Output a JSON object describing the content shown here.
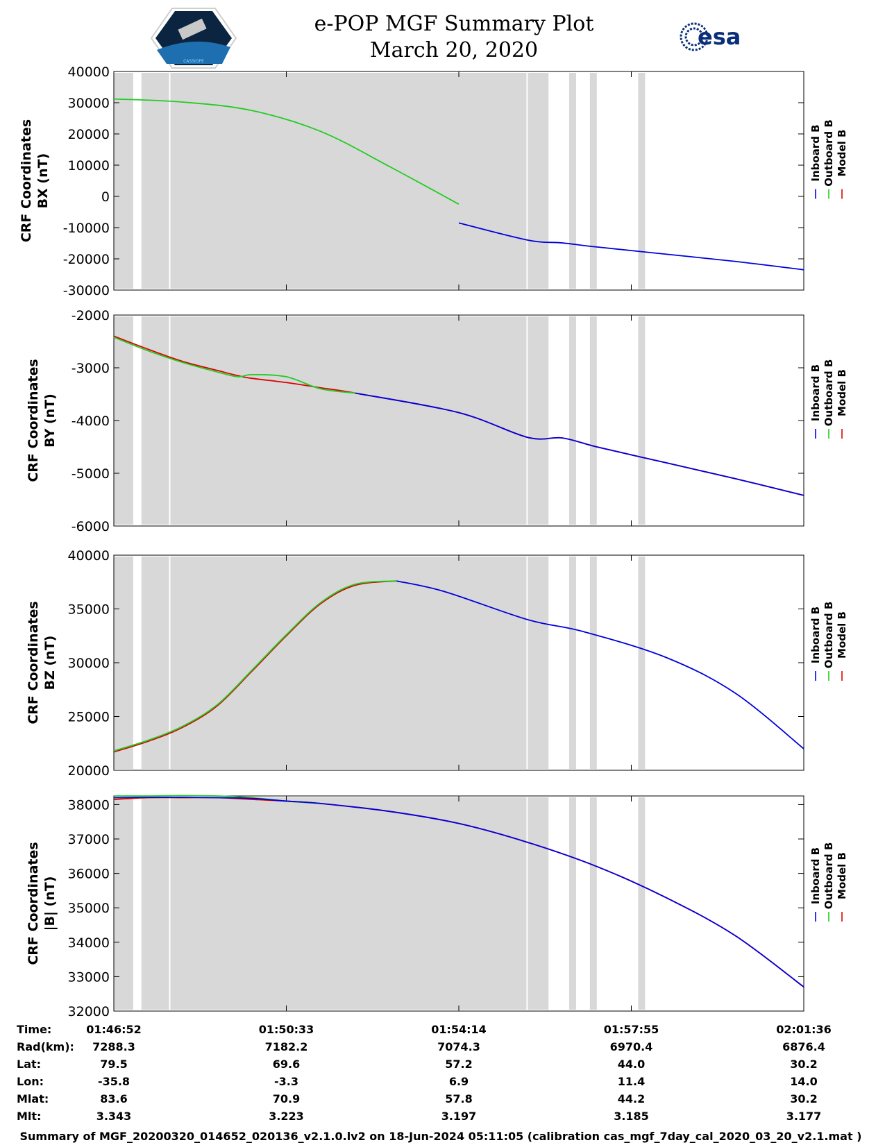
{
  "header": {
    "title": "e-POP MGF Summary Plot",
    "date": "March 20, 2020",
    "left_logo_text": "CASSIOPE",
    "right_logo_text": "esa"
  },
  "colors": {
    "inboard": "#0000dd",
    "outboard": "#22cc22",
    "model": "#dd0000",
    "gap": "#d8d8d8"
  },
  "legend": [
    "Inboard B",
    "Outboard B",
    "Model B"
  ],
  "chart_data": [
    {
      "type": "line",
      "id": "bx",
      "ylabel": [
        "CRF Coordinates",
        "BX (nT)"
      ],
      "ylim": [
        -30000,
        40000
      ],
      "yticks": [
        40000,
        30000,
        20000,
        10000,
        0,
        -10000,
        -20000,
        -30000
      ],
      "x": [
        0,
        0.1,
        0.2,
        0.3,
        0.4,
        0.5,
        0.6,
        0.65,
        0.7,
        0.8,
        0.9,
        1.0
      ],
      "series": [
        {
          "name": "Outboard B",
          "x_range": [
            0,
            0.5
          ],
          "values": [
            31200,
            30200,
            27500,
            20800,
            9500,
            -2500,
            null,
            null,
            null,
            null,
            null,
            null
          ]
        },
        {
          "name": "Inboard B",
          "x_range": [
            0.5,
            1.0
          ],
          "values": [
            null,
            null,
            null,
            null,
            null,
            -8500,
            -14000,
            -14900,
            -16200,
            -18500,
            -20800,
            -23500
          ]
        }
      ]
    },
    {
      "type": "line",
      "id": "by",
      "ylabel": [
        "CRF Coordinates",
        "BY (nT)"
      ],
      "ylim": [
        -6000,
        -2000
      ],
      "yticks": [
        -2000,
        -3000,
        -4000,
        -5000,
        -6000
      ],
      "x": [
        0,
        0.05,
        0.1,
        0.15,
        0.18,
        0.2,
        0.25,
        0.3,
        0.35,
        0.5,
        0.6,
        0.65,
        0.7,
        0.8,
        0.9,
        1.0
      ],
      "series": [
        {
          "name": "Model B",
          "values": [
            -2400,
            -2650,
            -2880,
            -3050,
            -3150,
            -3200,
            -3280,
            -3380,
            -3480,
            -3850,
            -4320,
            -4330,
            -4500,
            -4800,
            -5100,
            -5420
          ]
        },
        {
          "name": "Outboard B",
          "values": [
            -2420,
            -2680,
            -2900,
            -3080,
            -3170,
            -3130,
            -3170,
            -3400,
            -3480,
            null,
            null,
            null,
            null,
            null,
            null,
            null
          ]
        },
        {
          "name": "Inboard B",
          "values": [
            null,
            null,
            null,
            null,
            null,
            null,
            null,
            null,
            -3480,
            -3850,
            -4320,
            -4330,
            -4500,
            -4800,
            -5100,
            -5420
          ]
        }
      ]
    },
    {
      "type": "line",
      "id": "bz",
      "ylabel": [
        "CRF Coordinates",
        "BZ (nT)"
      ],
      "ylim": [
        20000,
        40000
      ],
      "yticks": [
        40000,
        35000,
        30000,
        25000,
        20000
      ],
      "x": [
        0,
        0.05,
        0.1,
        0.15,
        0.2,
        0.25,
        0.3,
        0.35,
        0.41,
        0.48,
        0.6,
        0.68,
        0.8,
        0.9,
        1.0
      ],
      "series": [
        {
          "name": "Model B",
          "values": [
            21700,
            22700,
            24000,
            26000,
            29200,
            32500,
            35500,
            37200,
            37600,
            null,
            null,
            null,
            null,
            null,
            null
          ]
        },
        {
          "name": "Outboard B",
          "values": [
            21800,
            22800,
            24100,
            26100,
            29300,
            32600,
            35600,
            37300,
            37600,
            null,
            null,
            null,
            null,
            null,
            null
          ]
        },
        {
          "name": "Inboard B",
          "values": [
            null,
            null,
            null,
            null,
            null,
            null,
            null,
            null,
            37600,
            36600,
            34000,
            32900,
            30500,
            27200,
            22000
          ]
        }
      ]
    },
    {
      "type": "line",
      "id": "bmag",
      "ylabel": [
        "CRF Coordinates",
        "|B| (nT)"
      ],
      "ylim": [
        32000,
        38250
      ],
      "yticks": [
        38000,
        37000,
        36000,
        35000,
        34000,
        33000,
        32000
      ],
      "x": [
        0,
        0.05,
        0.1,
        0.15,
        0.2,
        0.25,
        0.3,
        0.4,
        0.5,
        0.6,
        0.7,
        0.8,
        0.9,
        1.0
      ],
      "series": [
        {
          "name": "Model B",
          "values": [
            38150,
            38200,
            38200,
            38200,
            38150,
            38100,
            38030,
            37800,
            37450,
            36900,
            36200,
            35300,
            34200,
            32700
          ]
        },
        {
          "name": "Outboard B",
          "values": [
            38250,
            38250,
            38260,
            38250,
            38200,
            38100,
            38030,
            null,
            null,
            null,
            null,
            null,
            null,
            null
          ]
        },
        {
          "name": "Inboard B",
          "values": [
            38200,
            38210,
            38210,
            38200,
            38180,
            38100,
            38030,
            37800,
            37450,
            36900,
            36200,
            35300,
            34200,
            32700
          ]
        }
      ]
    }
  ],
  "gaps": [
    [
      0.015,
      0.028
    ],
    [
      0.04,
      0.08
    ],
    [
      0.6,
      0.63
    ],
    [
      0.66,
      0.67
    ],
    [
      0.69,
      0.7
    ],
    [
      0.76,
      0.77
    ]
  ],
  "table": {
    "row_labels": [
      "Time:",
      "Rad(km):",
      "Lat:",
      "Lon:",
      "Mlat:",
      "Mlt:"
    ],
    "columns": [
      [
        "01:46:52",
        "7288.3",
        "79.5",
        "-35.8",
        "83.6",
        "3.343"
      ],
      [
        "01:50:33",
        "7182.2",
        "69.6",
        "-3.3",
        "70.9",
        "3.223"
      ],
      [
        "01:54:14",
        "7074.3",
        "57.2",
        "6.9",
        "57.8",
        "3.197"
      ],
      [
        "01:57:55",
        "6970.4",
        "44.0",
        "11.4",
        "44.2",
        "3.185"
      ],
      [
        "02:01:36",
        "6876.4",
        "30.2",
        "14.0",
        "30.2",
        "3.177"
      ]
    ]
  },
  "footer": "Summary of MGF_20200320_014652_020136_v2.1.0.lv2 on 18-Jun-2024 05:11:05 (calibration cas_mgf_7day_cal_2020_03_20_v2.1.mat )"
}
